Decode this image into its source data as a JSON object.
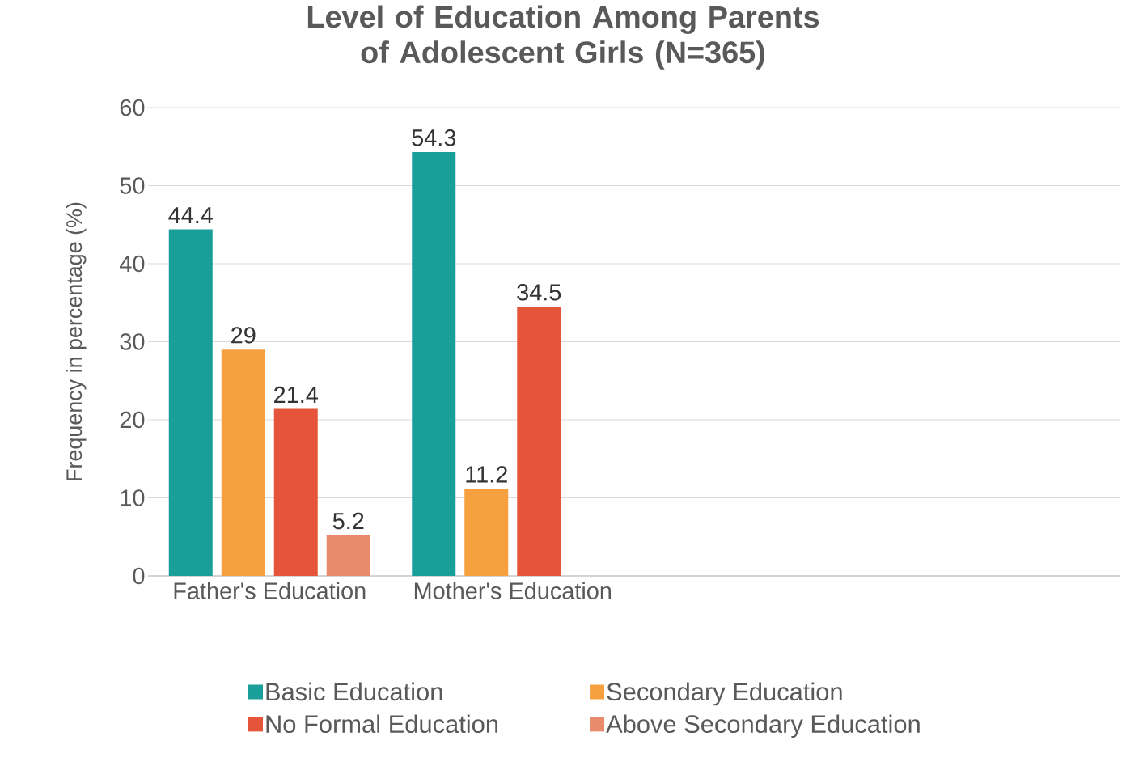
{
  "chart_data": {
    "type": "bar",
    "title": "Level of Education Among Parents of Adolescent Girls (N=365)",
    "ylabel": "Frequency in percentage (%)",
    "categories": [
      "Father's Education",
      "Mother's Education",
      null,
      null
    ],
    "series": [
      {
        "name": "Basic Education",
        "color": "#1a9e9a",
        "values": [
          44.4,
          54.3,
          null,
          null
        ]
      },
      {
        "name": "Secondary Education",
        "color": "#f7a040",
        "values": [
          29,
          11.2,
          null,
          null
        ]
      },
      {
        "name": "No Formal Education",
        "color": "#e4553a",
        "values": [
          21.4,
          34.5,
          null,
          null
        ]
      },
      {
        "name": "Above Secondary Education",
        "color": "#e88a6c",
        "values": [
          5.2,
          null,
          null,
          null
        ]
      }
    ],
    "ylim": [
      0,
      60
    ],
    "yticks": [
      0,
      10,
      20,
      30,
      40,
      50,
      60
    ],
    "grid": "y",
    "legend": "bottom",
    "data_labels": true
  }
}
